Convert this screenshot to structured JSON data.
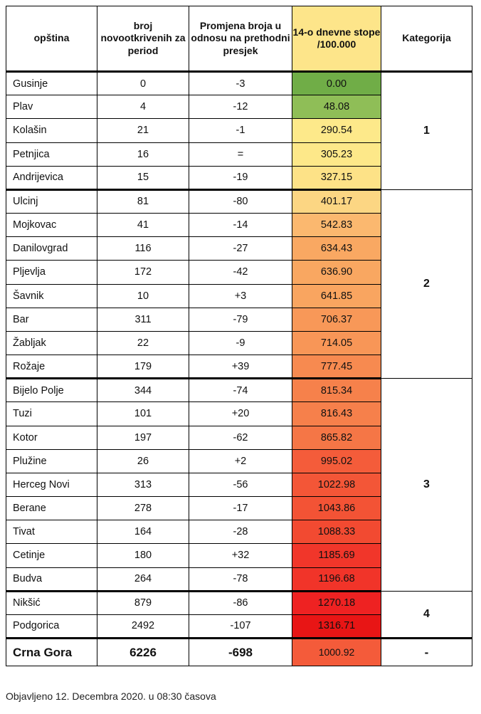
{
  "headers": {
    "col1": "opština",
    "col2": "broj novootkrivenih za period",
    "col3": "Promjena broja u odnosu na prethodni presjek",
    "col4": "14-o dnevne stope /100.000",
    "col5": "Kategorija"
  },
  "groups": [
    {
      "category": "1",
      "rows": [
        {
          "name": "Gusinje",
          "count": "0",
          "change": "-3",
          "rate": "0.00",
          "color": "#70ad47"
        },
        {
          "name": "Plav",
          "count": "4",
          "change": "-12",
          "rate": "48.08",
          "color": "#8fbe57"
        },
        {
          "name": "Kolašin",
          "count": "21",
          "change": "-1",
          "rate": "290.54",
          "color": "#fde98a"
        },
        {
          "name": "Petnjica",
          "count": "16",
          "change": "=",
          "rate": "305.23",
          "color": "#fde889"
        },
        {
          "name": "Andrijevica",
          "count": "15",
          "change": "-19",
          "rate": "327.15",
          "color": "#fde287"
        }
      ]
    },
    {
      "category": "2",
      "rows": [
        {
          "name": "Ulcinj",
          "count": "81",
          "change": "-80",
          "rate": "401.17",
          "color": "#fcd683"
        },
        {
          "name": "Mojkovac",
          "count": "41",
          "change": "-14",
          "rate": "542.83",
          "color": "#fbb86f"
        },
        {
          "name": "Danilovgrad",
          "count": "116",
          "change": "-27",
          "rate": "634.43",
          "color": "#f9a862"
        },
        {
          "name": "Pljevlja",
          "count": "172",
          "change": "-42",
          "rate": "636.90",
          "color": "#f9a761"
        },
        {
          "name": "Šavnik",
          "count": "10",
          "change": "+3",
          "rate": "641.85",
          "color": "#f9a560"
        },
        {
          "name": "Bar",
          "count": "311",
          "change": "-79",
          "rate": "706.37",
          "color": "#f89858"
        },
        {
          "name": "Žabljak",
          "count": "22",
          "change": "-9",
          "rate": "714.05",
          "color": "#f89657"
        },
        {
          "name": "Rožaje",
          "count": "179",
          "change": "+39",
          "rate": "777.45",
          "color": "#f78a50"
        }
      ]
    },
    {
      "category": "3",
      "rows": [
        {
          "name": "Bijelo Polje",
          "count": "344",
          "change": "-74",
          "rate": "815.34",
          "color": "#f6814b"
        },
        {
          "name": "Tuzi",
          "count": "101",
          "change": "+20",
          "rate": "816.43",
          "color": "#f6804b"
        },
        {
          "name": "Kotor",
          "count": "197",
          "change": "-62",
          "rate": "865.82",
          "color": "#f57646"
        },
        {
          "name": "Plužine",
          "count": "26",
          "change": "+2",
          "rate": "995.02",
          "color": "#f45c3a"
        },
        {
          "name": "Herceg Novi",
          "count": "313",
          "change": "-56",
          "rate": "1022.98",
          "color": "#f35637"
        },
        {
          "name": "Berane",
          "count": "278",
          "change": "-17",
          "rate": "1043.86",
          "color": "#f35335"
        },
        {
          "name": "Tivat",
          "count": "164",
          "change": "-28",
          "rate": "1088.33",
          "color": "#f24a31"
        },
        {
          "name": "Cetinje",
          "count": "180",
          "change": "+32",
          "rate": "1185.69",
          "color": "#f1362a"
        },
        {
          "name": "Budva",
          "count": "264",
          "change": "-78",
          "rate": "1196.68",
          "color": "#f13429"
        }
      ]
    },
    {
      "category": "4",
      "rows": [
        {
          "name": "Nikšić",
          "count": "879",
          "change": "-86",
          "rate": "1270.18",
          "color": "#ee2222"
        },
        {
          "name": "Podgorica",
          "count": "2492",
          "change": "-107",
          "rate": "1316.71",
          "color": "#e81515"
        }
      ]
    }
  ],
  "total": {
    "name": "Crna Gora",
    "count": "6226",
    "change": "-698",
    "rate": "1000.92",
    "rate_color": "#f45b3a",
    "category": "-"
  },
  "footer": "Objavljeno 12. Decembra 2020. u 08:30 časova"
}
